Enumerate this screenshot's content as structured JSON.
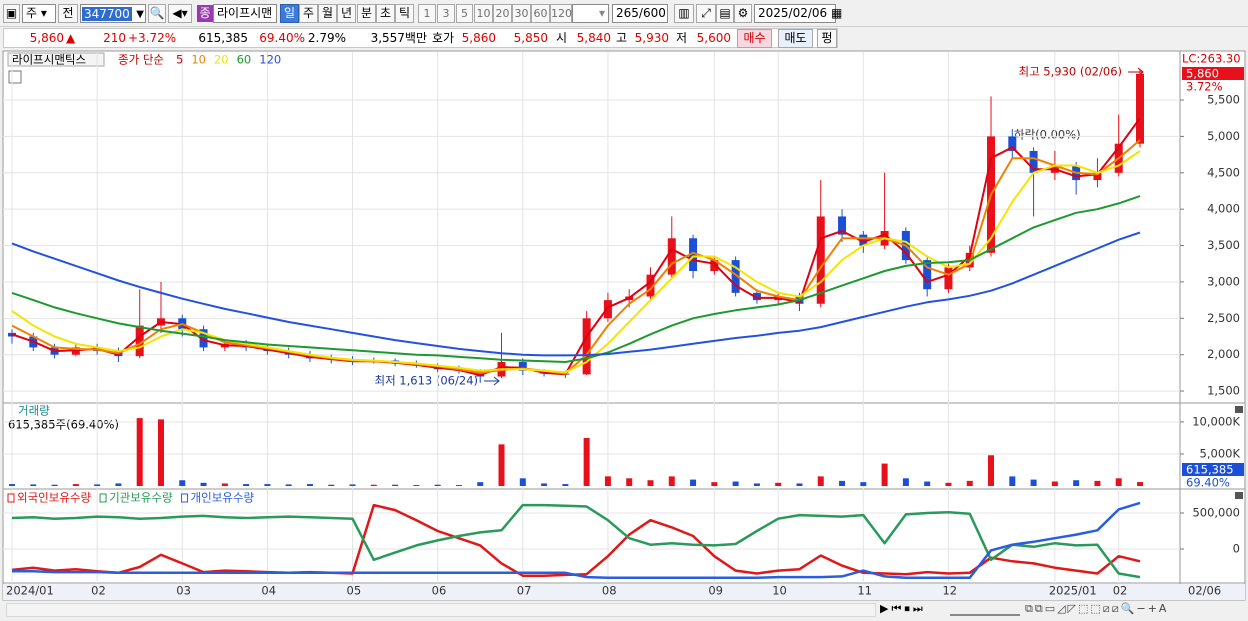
{
  "toolbar": {
    "market": "주",
    "prev": "전",
    "code": "347700",
    "badge": "종",
    "name": "라이프시맨",
    "periods": [
      "일",
      "주",
      "월",
      "년",
      "분",
      "초",
      "틱"
    ],
    "intervals": [
      "1",
      "3",
      "5",
      "10",
      "20",
      "30",
      "60",
      "120"
    ],
    "count": "265",
    "max": "/600",
    "date": "2025/02/06"
  },
  "quote": {
    "price": "5,860",
    "arrow": "▲",
    "change": "210",
    "rate": "+3.72%",
    "volume": "615,385",
    "volume_rate": "69.40%",
    "turnover": "2.79%",
    "amount": "3,557백만",
    "bid_label": "호가",
    "ask": "5,860",
    "bid": "5,850",
    "open_label": "시",
    "open": "5,840",
    "high_label": "고",
    "high": "5,930",
    "low_label": "저",
    "low": "5,600",
    "buy": "매수",
    "sell": "매도",
    "avg": "펑"
  },
  "chart_data": [
    {
      "type": "candlestick",
      "title": "라이프시맨틱스",
      "ma_title": "종가 단순",
      "up_color": "#e8101a",
      "down_color": "#1a4fd6",
      "open": [
        2300,
        2250,
        2100,
        2000,
        2100,
        2050,
        1980,
        2400,
        2500,
        2350,
        2100,
        2150,
        2100,
        2050,
        2000,
        1950,
        1930,
        1900,
        1920,
        1880,
        1850,
        1800,
        1780,
        1700,
        1900,
        1780,
        1740,
        1730,
        2500,
        2750,
        2800,
        3100,
        3600,
        3150,
        3300,
        2850,
        2750,
        2800,
        2700,
        3900,
        3650,
        3500,
        3700,
        3300,
        2900,
        3200,
        3400,
        5000,
        4800,
        4500,
        4600,
        4400,
        4500,
        4900
      ],
      "high": [
        2350,
        2300,
        2150,
        2150,
        2150,
        2100,
        2900,
        3000,
        2550,
        2400,
        2200,
        2200,
        2150,
        2100,
        2050,
        2000,
        1980,
        1960,
        1950,
        1920,
        1880,
        1850,
        1800,
        2300,
        1950,
        1800,
        1780,
        2600,
        2850,
        2900,
        3200,
        3900,
        3650,
        3350,
        3350,
        2900,
        2850,
        2850,
        4400,
        4000,
        3700,
        4500,
        3750,
        3350,
        3250,
        3500,
        5550,
        5100,
        4850,
        4800,
        4650,
        4700,
        5300,
        5930
      ],
      "low": [
        2150,
        2050,
        1950,
        1980,
        2000,
        1900,
        1950,
        2300,
        2250,
        2050,
        2050,
        2050,
        2000,
        1950,
        1900,
        1880,
        1860,
        1880,
        1840,
        1820,
        1760,
        1740,
        1613,
        1680,
        1720,
        1700,
        1680,
        1720,
        2450,
        2650,
        2750,
        3050,
        3050,
        3100,
        2800,
        2700,
        2700,
        2600,
        2650,
        3550,
        3400,
        3450,
        3250,
        2800,
        2850,
        3150,
        3350,
        4700,
        3900,
        4400,
        4200,
        4300,
        4450,
        4850
      ],
      "close": [
        2250,
        2100,
        2000,
        2100,
        2050,
        1980,
        2400,
        2500,
        2350,
        2100,
        2150,
        2100,
        2050,
        2000,
        1950,
        1930,
        1900,
        1920,
        1880,
        1850,
        1800,
        1780,
        1700,
        1900,
        1780,
        1740,
        1730,
        2500,
        2750,
        2800,
        3100,
        3600,
        3150,
        3300,
        2850,
        2750,
        2800,
        2700,
        3900,
        3650,
        3500,
        3700,
        3300,
        2900,
        3200,
        3400,
        5000,
        4800,
        4500,
        4600,
        4400,
        4500,
        4900,
        5860
      ],
      "series": [
        {
          "name": "5",
          "color": "#e00010",
          "values": [
            2280,
            2180,
            2050,
            2060,
            2080,
            2000,
            2250,
            2450,
            2420,
            2200,
            2130,
            2120,
            2070,
            2020,
            1970,
            1940,
            1910,
            1910,
            1890,
            1860,
            1820,
            1790,
            1720,
            1830,
            1820,
            1750,
            1730,
            2250,
            2650,
            2780,
            3000,
            3450,
            3300,
            3250,
            2950,
            2780,
            2780,
            2720,
            3600,
            3700,
            3550,
            3650,
            3400,
            3000,
            3100,
            3350,
            4700,
            4850,
            4550,
            4550,
            4450,
            4480,
            4850,
            5250
          ]
        },
        {
          "name": "10",
          "color": "#f08000",
          "values": [
            2400,
            2250,
            2100,
            2080,
            2070,
            2020,
            2150,
            2350,
            2420,
            2300,
            2170,
            2130,
            2090,
            2040,
            1990,
            1950,
            1920,
            1910,
            1900,
            1870,
            1840,
            1800,
            1750,
            1790,
            1810,
            1780,
            1740,
            2000,
            2400,
            2700,
            2900,
            3250,
            3400,
            3300,
            3100,
            2880,
            2800,
            2750,
            3200,
            3600,
            3600,
            3600,
            3500,
            3200,
            3100,
            3250,
            4200,
            4700,
            4700,
            4600,
            4500,
            4480,
            4700,
            4950
          ]
        },
        {
          "name": "20",
          "color": "#f2e600",
          "values": [
            2600,
            2400,
            2250,
            2150,
            2100,
            2050,
            2100,
            2250,
            2350,
            2300,
            2200,
            2150,
            2100,
            2050,
            2000,
            1960,
            1930,
            1920,
            1900,
            1880,
            1850,
            1820,
            1780,
            1800,
            1800,
            1780,
            1760,
            1900,
            2150,
            2450,
            2750,
            3050,
            3350,
            3350,
            3200,
            3000,
            2850,
            2800,
            3000,
            3300,
            3500,
            3600,
            3550,
            3350,
            3200,
            3250,
            3600,
            4100,
            4500,
            4600,
            4600,
            4500,
            4600,
            4800
          ]
        },
        {
          "name": "60",
          "color": "#1c9a30",
          "values": [
            2850,
            2750,
            2650,
            2570,
            2500,
            2430,
            2380,
            2330,
            2290,
            2250,
            2200,
            2170,
            2140,
            2120,
            2100,
            2080,
            2060,
            2040,
            2020,
            2000,
            1990,
            1970,
            1950,
            1930,
            1920,
            1910,
            1900,
            1950,
            2030,
            2150,
            2280,
            2400,
            2500,
            2560,
            2610,
            2650,
            2690,
            2750,
            2850,
            2950,
            3050,
            3150,
            3220,
            3260,
            3270,
            3300,
            3450,
            3600,
            3750,
            3850,
            3950,
            4000,
            4080,
            4180
          ]
        },
        {
          "name": "120",
          "color": "#2452e0",
          "values": [
            3530,
            3420,
            3320,
            3220,
            3120,
            3020,
            2930,
            2850,
            2770,
            2700,
            2630,
            2570,
            2510,
            2450,
            2400,
            2350,
            2300,
            2250,
            2200,
            2160,
            2120,
            2080,
            2050,
            2020,
            2000,
            1990,
            1990,
            1995,
            2010,
            2040,
            2070,
            2110,
            2150,
            2190,
            2230,
            2260,
            2300,
            2330,
            2380,
            2450,
            2520,
            2590,
            2660,
            2720,
            2760,
            2810,
            2880,
            2980,
            3100,
            3220,
            3340,
            3460,
            3580,
            3680
          ]
        }
      ],
      "ylim": [
        1350,
        6160
      ],
      "yticks": [
        {
          "value": 1500,
          "label": "1,500"
        },
        {
          "value": 2000,
          "label": "2,000"
        },
        {
          "value": 2500,
          "label": "2,500"
        },
        {
          "value": 3000,
          "label": "3,000"
        },
        {
          "value": 3500,
          "label": "3,500"
        },
        {
          "value": 4000,
          "label": "4,000"
        },
        {
          "value": 4500,
          "label": "4,500"
        },
        {
          "value": 5000,
          "label": "5,000"
        },
        {
          "value": 5500,
          "label": "5,500"
        }
      ],
      "grid": true,
      "annotations": [
        "최고 5,930 (02/06)",
        "최저 1,613 (06/24)",
        "하락(0.00%)"
      ],
      "lc_label": "LC:263.30",
      "last_label": "5,860",
      "last_rate": "3.72%"
    },
    {
      "type": "bar",
      "title": "거래량",
      "subtitle": "615,385주(69.40%)",
      "values": [
        300000,
        250000,
        200000,
        300000,
        250000,
        400000,
        10600000,
        10400000,
        900000,
        500000,
        400000,
        300000,
        300000,
        250000,
        300000,
        200000,
        250000,
        200000,
        200000,
        150000,
        200000,
        150000,
        600000,
        6500000,
        1200000,
        400000,
        300000,
        7500000,
        1500000,
        1200000,
        900000,
        1500000,
        1000000,
        600000,
        700000,
        400000,
        500000,
        400000,
        1500000,
        800000,
        600000,
        3500000,
        1200000,
        700000,
        500000,
        800000,
        4800000,
        1500000,
        1000000,
        700000,
        900000,
        800000,
        1200000,
        615385
      ],
      "ylim": [
        0,
        12800000
      ],
      "yticks": [
        {
          "value": 5000000,
          "label": "5,000K"
        },
        {
          "value": 10000000,
          "label": "10,000K"
        }
      ],
      "grid": true,
      "last_label": "615,385",
      "last_rate": "69.40%"
    },
    {
      "type": "line",
      "categories": [
        "2024/01",
        null,
        null,
        null,
        "02",
        null,
        null,
        null,
        "03",
        null,
        null,
        null,
        "04",
        null,
        null,
        null,
        "05",
        null,
        null,
        null,
        "06",
        null,
        null,
        null,
        "07",
        null,
        null,
        null,
        "08",
        null,
        null,
        null,
        null,
        "09",
        null,
        null,
        "10",
        null,
        null,
        null,
        "11",
        null,
        null,
        null,
        "12",
        null,
        null,
        null,
        null,
        "2025/01",
        null,
        null,
        "02",
        null
      ],
      "series": [
        {
          "name": "외국인보유수량",
          "color": "#e01818",
          "values": [
            -290000,
            -260000,
            -300000,
            -280000,
            -310000,
            -330000,
            -250000,
            -80000,
            -200000,
            -320000,
            -300000,
            -310000,
            -320000,
            -330000,
            -320000,
            -330000,
            -340000,
            610000,
            540000,
            400000,
            250000,
            150000,
            50000,
            -200000,
            -370000,
            -370000,
            -360000,
            -350000,
            -100000,
            200000,
            400000,
            300000,
            180000,
            -100000,
            -300000,
            -340000,
            -300000,
            -280000,
            -90000,
            -230000,
            -330000,
            -340000,
            -350000,
            -320000,
            -340000,
            -330000,
            -120000,
            -170000,
            -200000,
            -260000,
            -300000,
            -340000,
            -100000,
            -170000
          ]
        },
        {
          "name": "기관보유수량",
          "color": "#2a9a5a",
          "values": [
            430000,
            440000,
            420000,
            430000,
            450000,
            440000,
            420000,
            430000,
            450000,
            460000,
            440000,
            430000,
            440000,
            450000,
            440000,
            430000,
            420000,
            -150000,
            -50000,
            50000,
            120000,
            180000,
            230000,
            260000,
            610000,
            610000,
            600000,
            590000,
            400000,
            150000,
            60000,
            80000,
            60000,
            50000,
            70000,
            250000,
            420000,
            470000,
            460000,
            450000,
            470000,
            80000,
            480000,
            500000,
            510000,
            490000,
            -150000,
            60000,
            30000,
            80000,
            50000,
            60000,
            -340000,
            -390000
          ]
        },
        {
          "name": "개인보유수량",
          "color": "#2a5ee0",
          "values": [
            -310000,
            -310000,
            -320000,
            -320000,
            -320000,
            -330000,
            -330000,
            -330000,
            -330000,
            -330000,
            -330000,
            -330000,
            -330000,
            -330000,
            -330000,
            -330000,
            -330000,
            -330000,
            -330000,
            -330000,
            -330000,
            -330000,
            -330000,
            -330000,
            -330000,
            -330000,
            -330000,
            -390000,
            -400000,
            -400000,
            -400000,
            -400000,
            -400000,
            -400000,
            -400000,
            -400000,
            -390000,
            -390000,
            -390000,
            -380000,
            -300000,
            -380000,
            -400000,
            -400000,
            -400000,
            -400000,
            -20000,
            60000,
            100000,
            150000,
            200000,
            260000,
            550000,
            640000
          ]
        }
      ],
      "ylim": [
        -444000,
        805000
      ],
      "yticks": [
        0,
        {
          "value": 500000,
          "label": "500,000"
        }
      ],
      "grid": true,
      "last_date": "02/06"
    }
  ]
}
